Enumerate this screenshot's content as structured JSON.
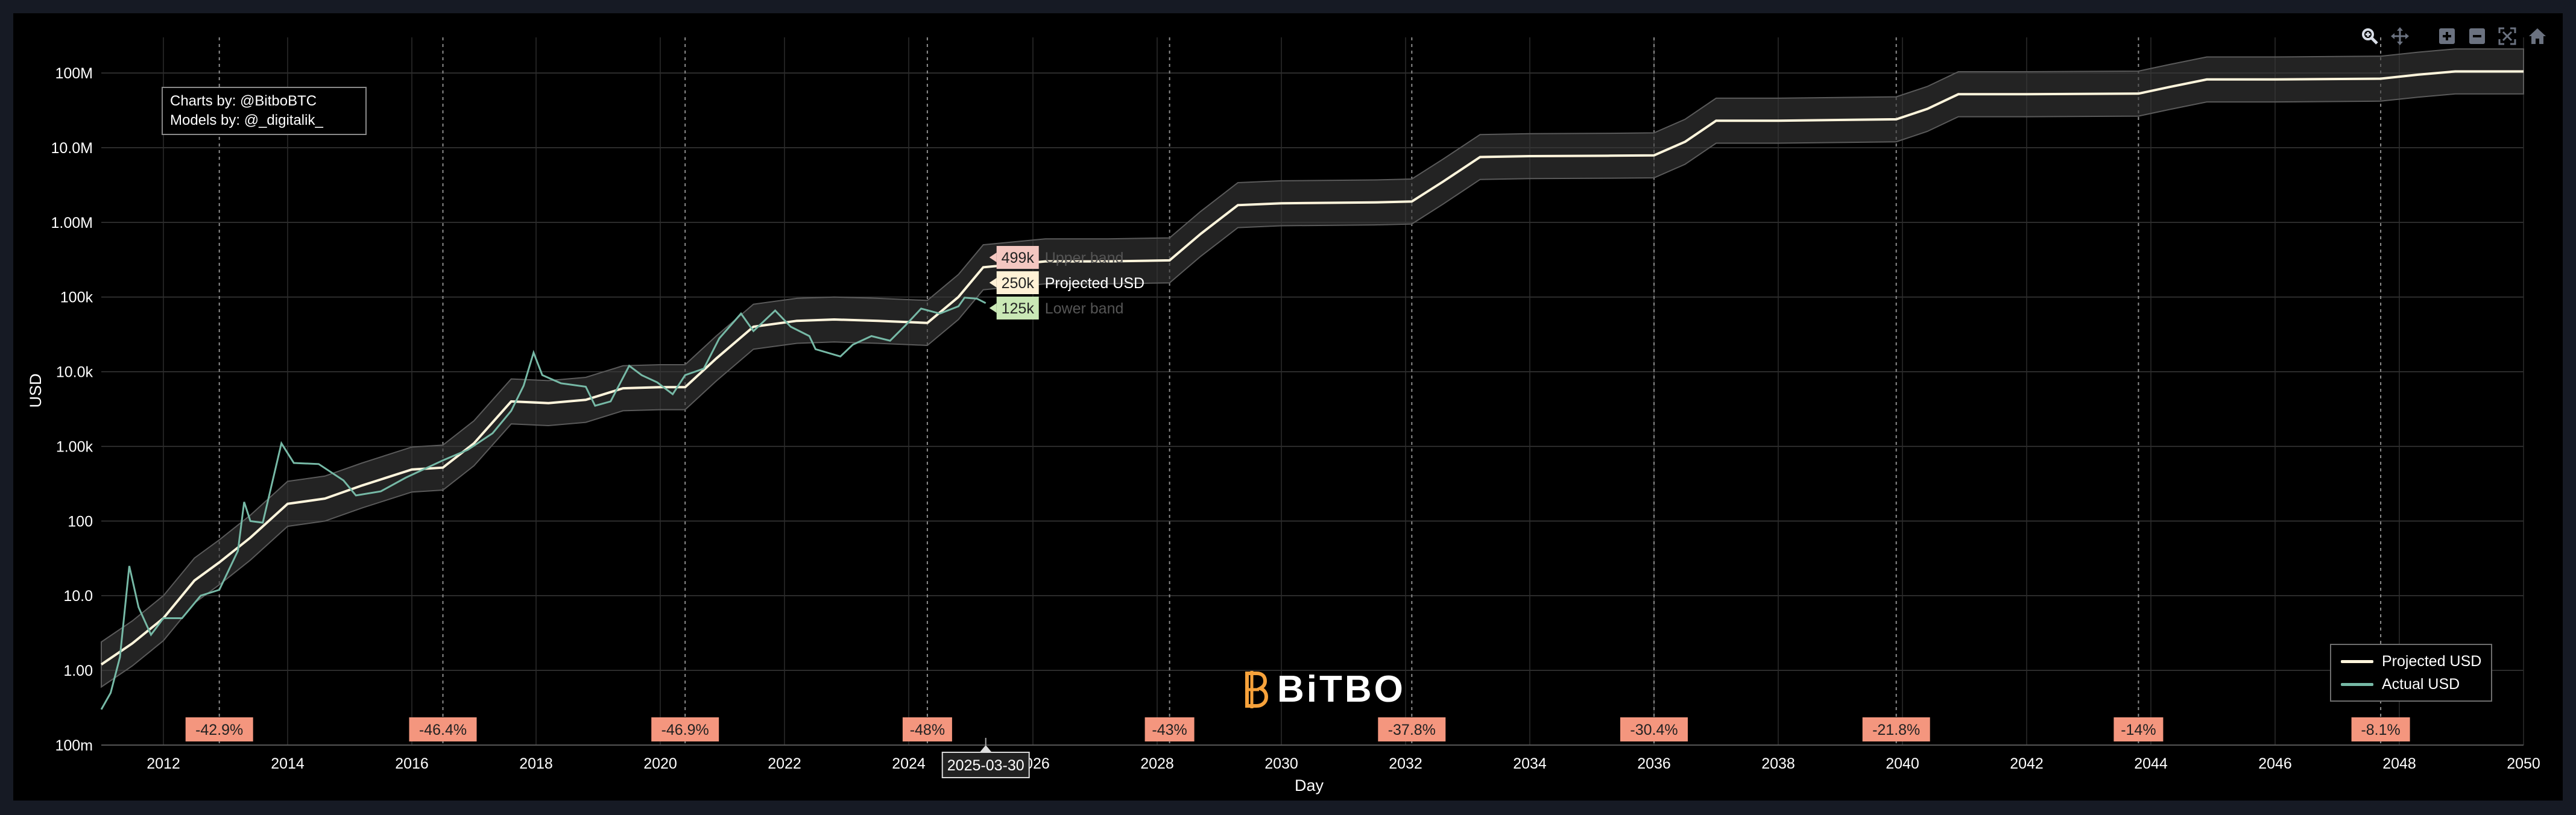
{
  "toolbar": {
    "buttons": [
      {
        "name": "zoom-button",
        "icon": "zoom-icon"
      },
      {
        "name": "pan-button",
        "icon": "pan-icon"
      },
      {
        "name": "zoom-in-button",
        "icon": "plus-square-icon"
      },
      {
        "name": "zoom-out-button",
        "icon": "minus-square-icon"
      },
      {
        "name": "autoscale-button",
        "icon": "autoscale-icon"
      },
      {
        "name": "reset-axes-button",
        "icon": "home-icon"
      }
    ]
  },
  "credits": {
    "line1": "Charts by: @BitboBTC",
    "line2": "Models by: @_digitalik_"
  },
  "brand": {
    "name": "BiTBO",
    "accent": "#f7a23b"
  },
  "legend": {
    "items": [
      {
        "label": "Projected USD",
        "color": "#fff5dc"
      },
      {
        "label": "Actual USD",
        "color": "#76b9a6"
      }
    ]
  },
  "hover": {
    "date_label": "2025-03-30",
    "upper": {
      "value": "499k",
      "name": "Upper band",
      "bg": "#f4c7c1"
    },
    "projected": {
      "value": "250k",
      "name": "Projected USD",
      "bg": "#fff1d6"
    },
    "lower": {
      "value": "125k",
      "name": "Lower band",
      "bg": "#c9e8b5"
    }
  },
  "chart_data": {
    "type": "line",
    "xlabel": "Day",
    "ylabel": "USD",
    "x_range": [
      2011.0,
      2050.0
    ],
    "y_scale": "log",
    "y_range": [
      0.1,
      300000000
    ],
    "y_ticks": [
      {
        "v": 0.1,
        "label": "100m"
      },
      {
        "v": 1,
        "label": "1.00"
      },
      {
        "v": 10,
        "label": "10.0"
      },
      {
        "v": 100,
        "label": "100"
      },
      {
        "v": 1000,
        "label": "1.00k"
      },
      {
        "v": 10000,
        "label": "10.0k"
      },
      {
        "v": 100000,
        "label": "100k"
      },
      {
        "v": 1000000,
        "label": "1.00M"
      },
      {
        "v": 10000000,
        "label": "10.0M"
      },
      {
        "v": 100000000,
        "label": "100M"
      }
    ],
    "x_ticks": [
      "2012",
      "2014",
      "2016",
      "2018",
      "2020",
      "2022",
      "2024",
      "2026",
      "2028",
      "2030",
      "2032",
      "2034",
      "2036",
      "2038",
      "2040",
      "2042",
      "2044",
      "2046",
      "2048",
      "2050"
    ],
    "x_tick_values": [
      2012,
      2014,
      2016,
      2018,
      2020,
      2022,
      2024,
      2026,
      2028,
      2030,
      2032,
      2034,
      2036,
      2038,
      2040,
      2042,
      2044,
      2046,
      2048,
      2050
    ],
    "halvings": [
      {
        "x": 2012.9,
        "label": "-42.9%"
      },
      {
        "x": 2016.5,
        "label": "-46.4%"
      },
      {
        "x": 2020.4,
        "label": "-46.9%"
      },
      {
        "x": 2024.3,
        "label": "-48%"
      },
      {
        "x": 2028.2,
        "label": "-43%"
      },
      {
        "x": 2032.1,
        "label": "-37.8%"
      },
      {
        "x": 2036.0,
        "label": "-30.4%"
      },
      {
        "x": 2039.9,
        "label": "-21.8%"
      },
      {
        "x": 2043.8,
        "label": "-14%"
      },
      {
        "x": 2047.7,
        "label": "-8.1%"
      }
    ],
    "band_factor": 2,
    "hover_x": 2025.24,
    "series": [
      {
        "name": "Projected USD",
        "color": "#fff5dc",
        "points": [
          [
            2011.0,
            1.2
          ],
          [
            2011.5,
            2.3
          ],
          [
            2012.0,
            5
          ],
          [
            2012.5,
            16
          ],
          [
            2012.9,
            28
          ],
          [
            2013.4,
            60
          ],
          [
            2014.0,
            170
          ],
          [
            2014.6,
            200
          ],
          [
            2015.2,
            300
          ],
          [
            2016.0,
            490
          ],
          [
            2016.5,
            520
          ],
          [
            2017.0,
            1100
          ],
          [
            2017.6,
            4000
          ],
          [
            2018.2,
            3800
          ],
          [
            2018.8,
            4200
          ],
          [
            2019.4,
            6000
          ],
          [
            2020.0,
            6200
          ],
          [
            2020.4,
            6200
          ],
          [
            2020.9,
            15000
          ],
          [
            2021.5,
            40000
          ],
          [
            2022.2,
            48000
          ],
          [
            2022.8,
            50000
          ],
          [
            2023.5,
            48000
          ],
          [
            2024.3,
            45000
          ],
          [
            2024.8,
            100000
          ],
          [
            2025.2,
            250000
          ],
          [
            2026.2,
            300000
          ],
          [
            2026.6,
            300000
          ],
          [
            2027.2,
            300000
          ],
          [
            2028.2,
            310000
          ],
          [
            2028.7,
            700000
          ],
          [
            2029.3,
            1700000
          ],
          [
            2030.0,
            1800000
          ],
          [
            2031.5,
            1850000
          ],
          [
            2032.1,
            1900000
          ],
          [
            2032.6,
            3500000
          ],
          [
            2033.2,
            7500000
          ],
          [
            2034.0,
            7700000
          ],
          [
            2035.3,
            7800000
          ],
          [
            2036.0,
            7900000
          ],
          [
            2036.5,
            12000000
          ],
          [
            2037.0,
            23000000
          ],
          [
            2038.0,
            23000000
          ],
          [
            2039.9,
            24000000
          ],
          [
            2040.4,
            33000000
          ],
          [
            2040.9,
            52000000
          ],
          [
            2042.0,
            52000000
          ],
          [
            2043.8,
            53000000
          ],
          [
            2044.3,
            65000000
          ],
          [
            2044.9,
            82000000
          ],
          [
            2046.0,
            82000000
          ],
          [
            2047.7,
            84000000
          ],
          [
            2048.3,
            95000000
          ],
          [
            2048.9,
            105000000
          ],
          [
            2050.0,
            105000000
          ]
        ]
      },
      {
        "name": "Actual USD",
        "color": "#76b9a6",
        "points": [
          [
            2011.0,
            0.3
          ],
          [
            2011.15,
            0.5
          ],
          [
            2011.3,
            1.5
          ],
          [
            2011.45,
            25
          ],
          [
            2011.6,
            7
          ],
          [
            2011.8,
            3
          ],
          [
            2012.0,
            5
          ],
          [
            2012.3,
            5
          ],
          [
            2012.6,
            10
          ],
          [
            2012.9,
            12
          ],
          [
            2013.2,
            40
          ],
          [
            2013.3,
            180
          ],
          [
            2013.4,
            100
          ],
          [
            2013.6,
            95
          ],
          [
            2013.9,
            1100
          ],
          [
            2014.1,
            600
          ],
          [
            2014.5,
            580
          ],
          [
            2014.9,
            350
          ],
          [
            2015.1,
            220
          ],
          [
            2015.5,
            250
          ],
          [
            2015.9,
            380
          ],
          [
            2016.5,
            650
          ],
          [
            2016.9,
            900
          ],
          [
            2017.3,
            1500
          ],
          [
            2017.6,
            3000
          ],
          [
            2017.8,
            6500
          ],
          [
            2017.96,
            18000
          ],
          [
            2018.1,
            9000
          ],
          [
            2018.4,
            7000
          ],
          [
            2018.8,
            6300
          ],
          [
            2018.95,
            3500
          ],
          [
            2019.2,
            4000
          ],
          [
            2019.5,
            12000
          ],
          [
            2019.7,
            9000
          ],
          [
            2019.95,
            7200
          ],
          [
            2020.2,
            5000
          ],
          [
            2020.4,
            9000
          ],
          [
            2020.7,
            11000
          ],
          [
            2020.95,
            28000
          ],
          [
            2021.3,
            60000
          ],
          [
            2021.5,
            35000
          ],
          [
            2021.85,
            66000
          ],
          [
            2022.1,
            40000
          ],
          [
            2022.4,
            30000
          ],
          [
            2022.5,
            20000
          ],
          [
            2022.9,
            16000
          ],
          [
            2023.1,
            23000
          ],
          [
            2023.4,
            30000
          ],
          [
            2023.7,
            26000
          ],
          [
            2023.95,
            42000
          ],
          [
            2024.2,
            70000
          ],
          [
            2024.5,
            60000
          ],
          [
            2024.8,
            75000
          ],
          [
            2024.9,
            98000
          ],
          [
            2025.1,
            95000
          ],
          [
            2025.24,
            83000
          ]
        ]
      }
    ]
  }
}
